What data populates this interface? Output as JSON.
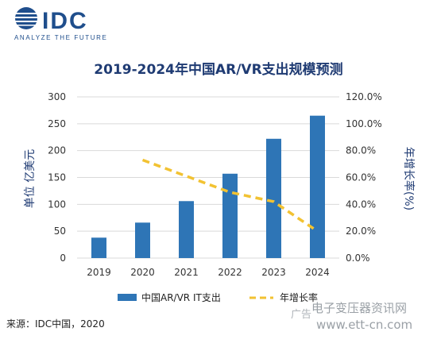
{
  "brand": {
    "name": "IDC",
    "tagline": "ANALYZE THE FUTURE",
    "accent": "#1f4e8c"
  },
  "chart_data": {
    "type": "bar",
    "title": "2019-2024年中国AR/VR支出规模预测",
    "categories": [
      "2019",
      "2020",
      "2021",
      "2022",
      "2023",
      "2024"
    ],
    "series": [
      {
        "name": "中国AR/VR IT支出",
        "type": "bar",
        "axis": "left",
        "color": "#2e75b6",
        "values": [
          38,
          66,
          106,
          157,
          222,
          265
        ]
      },
      {
        "name": "年增长率",
        "type": "line",
        "axis": "right",
        "color": "#f2c232",
        "line_style": "dashed",
        "values": [
          null,
          73.0,
          61.0,
          49.0,
          42.0,
          20.0
        ]
      }
    ],
    "ylabel": "单位 亿美元",
    "ylim": [
      0,
      300
    ],
    "yticks": [
      "0",
      "50",
      "100",
      "150",
      "200",
      "250",
      "300"
    ],
    "y2label": "年增长率(%)",
    "y2lim": [
      0,
      120
    ],
    "y2ticks": [
      "0.0%",
      "20.0%",
      "40.0%",
      "60.0%",
      "80.0%",
      "100.0%",
      "120.0%"
    ],
    "grid": true,
    "legend_position": "bottom"
  },
  "source": "来源：IDC中国，2020",
  "watermark": {
    "text": "电子变压器资讯网",
    "url": "www.ett-cn.com",
    "small": "广告"
  }
}
